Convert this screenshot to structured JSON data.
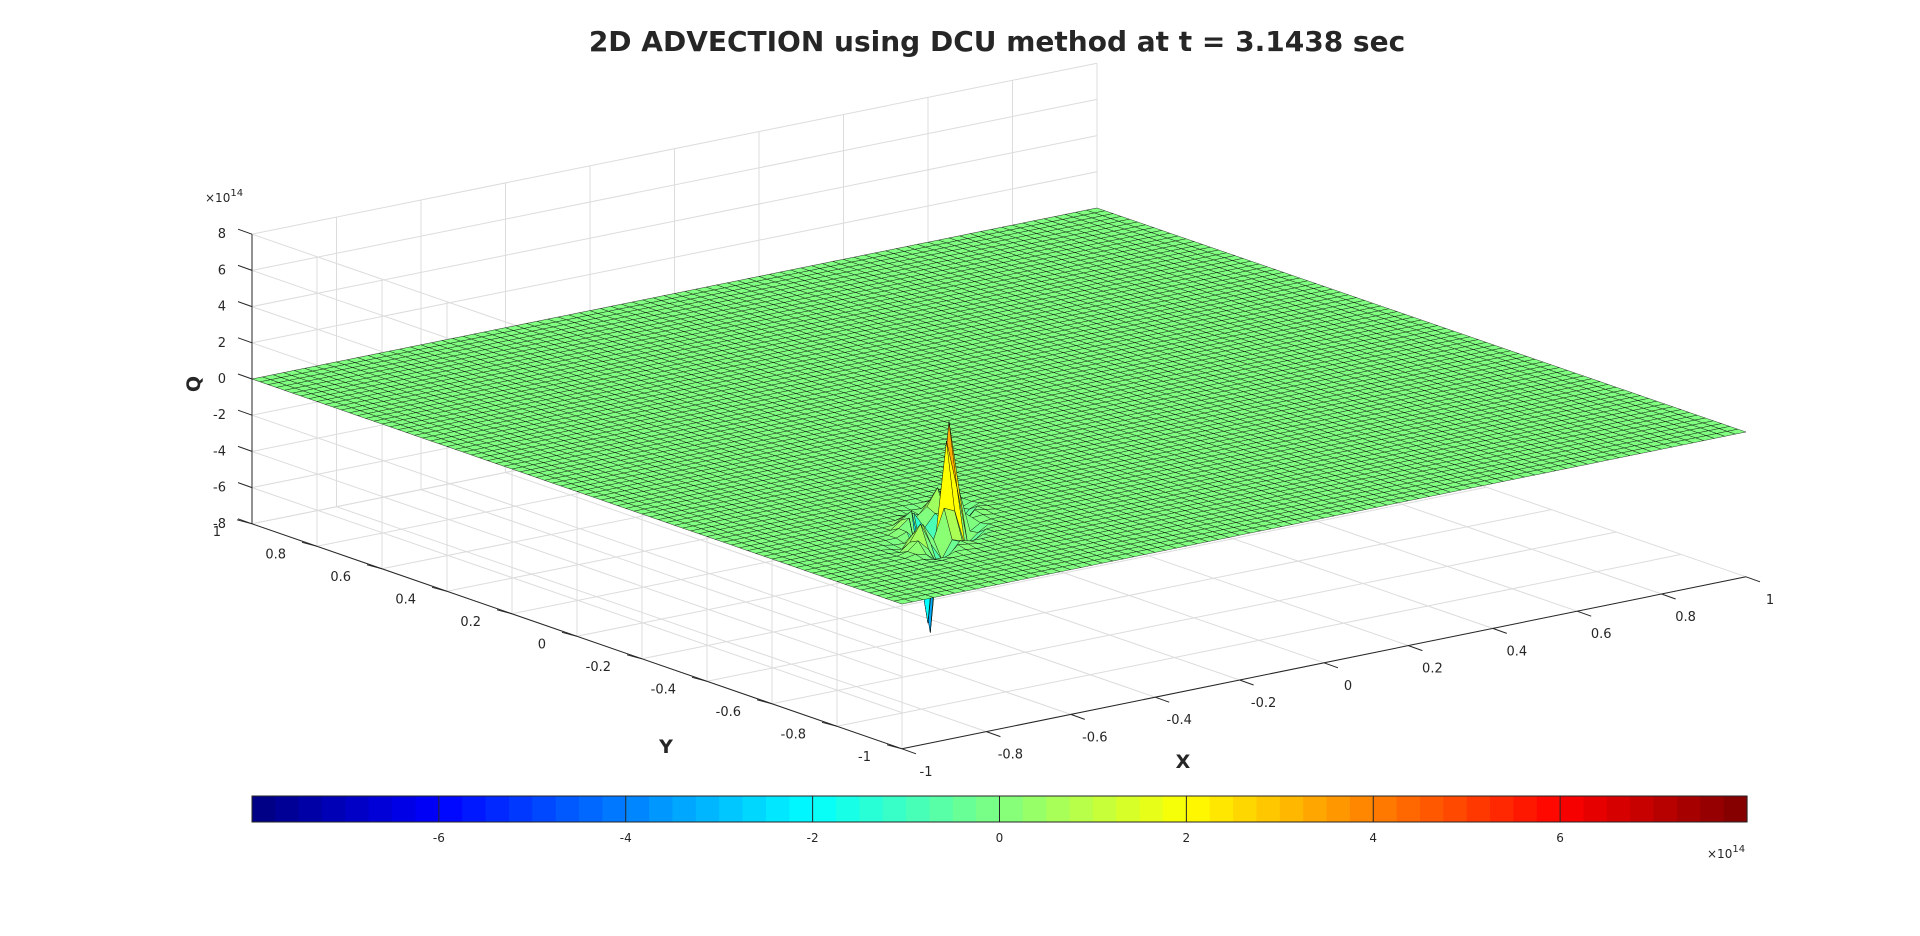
{
  "chart_data": {
    "type": "surface",
    "title": "2D ADVECTION using DCU method at t = 3.1438 sec",
    "xlabel": "X",
    "ylabel": "Y",
    "zlabel": "Q",
    "xlim": [
      -1,
      1
    ],
    "ylim": [
      -1,
      1
    ],
    "zlim": [
      -8,
      8
    ],
    "z_exponent_label": "×10",
    "z_exponent_power": "14",
    "x_ticks": [
      "-1",
      "-0.8",
      "-0.6",
      "-0.4",
      "-0.2",
      "0",
      "0.2",
      "0.4",
      "0.6",
      "0.8",
      "1"
    ],
    "y_ticks": [
      "-1",
      "-0.8",
      "-0.6",
      "-0.4",
      "-0.2",
      "0",
      "0.2",
      "0.4",
      "0.6",
      "0.8",
      "1"
    ],
    "z_ticks": [
      "-8",
      "-6",
      "-4",
      "-2",
      "0",
      "2",
      "4",
      "6",
      "8"
    ],
    "grid": true,
    "colormap": "jet",
    "surface_color_at_zero": "#8cff78",
    "mesh_color": "#000000",
    "disturbance": {
      "x_center": -0.62,
      "y_center": -0.62,
      "peak_max": 7.4,
      "peak_min": -7.6,
      "units_multiplier": "1e14"
    },
    "colorbar": {
      "location": "southoutside",
      "limits": [
        -8,
        8
      ],
      "ticks": [
        "-6",
        "-4",
        "-2",
        "0",
        "2",
        "4",
        "6"
      ],
      "exponent_label": "×10",
      "exponent_power": "14"
    }
  }
}
